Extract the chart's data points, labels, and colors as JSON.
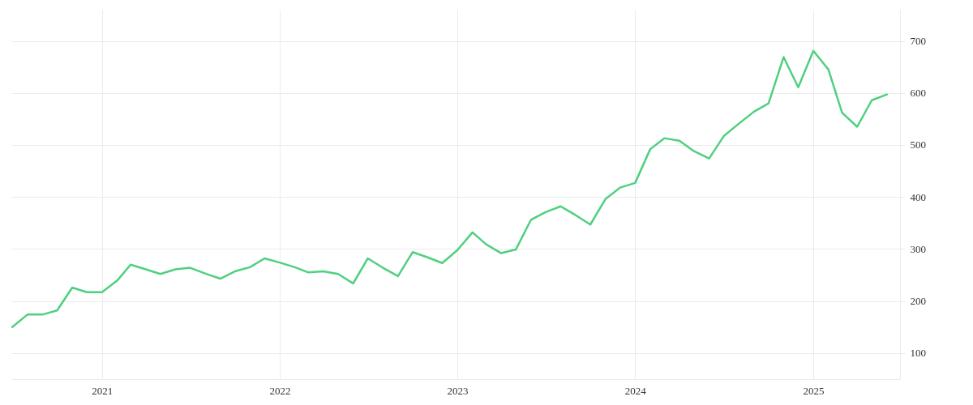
{
  "chart_data": {
    "type": "line",
    "x": [
      "2020-07",
      "2020-08",
      "2020-09",
      "2020-10",
      "2020-11",
      "2020-12",
      "2021-01",
      "2021-02",
      "2021-03",
      "2021-04",
      "2021-05",
      "2021-06",
      "2021-07",
      "2021-08",
      "2021-09",
      "2021-10",
      "2021-11",
      "2021-12",
      "2022-01",
      "2022-02",
      "2022-03",
      "2022-04",
      "2022-05",
      "2022-06",
      "2022-07",
      "2022-08",
      "2022-09",
      "2022-10",
      "2022-11",
      "2022-12",
      "2023-01",
      "2023-02",
      "2023-03",
      "2023-04",
      "2023-05",
      "2023-06",
      "2023-07",
      "2023-08",
      "2023-09",
      "2023-10",
      "2023-11",
      "2023-12",
      "2024-01",
      "2024-02",
      "2024-03",
      "2024-04",
      "2024-05",
      "2024-06",
      "2024-07",
      "2024-08",
      "2024-09",
      "2024-10",
      "2024-11",
      "2024-12",
      "2025-01",
      "2025-02",
      "2025-03",
      "2025-04",
      "2025-05",
      "2025-06"
    ],
    "series": [
      {
        "color": "#4fd07f",
        "values": [
          150,
          174,
          174,
          182,
          226,
          217,
          217,
          239,
          270,
          261,
          252,
          261,
          264,
          253,
          243,
          257,
          265,
          282,
          274,
          265,
          255,
          257,
          252,
          234,
          282,
          264,
          248,
          294,
          284,
          273,
          298,
          332,
          309,
          292,
          299,
          356,
          371,
          382,
          365,
          347,
          396,
          418,
          427,
          492,
          513,
          508,
          488,
          474,
          517,
          541,
          564,
          580,
          669,
          611,
          681,
          645,
          562,
          535,
          586,
          597
        ]
      }
    ],
    "xlim": [
      "2020-06-29",
      "2025-06-28"
    ],
    "xticks": [
      {
        "value": "2021-01-01",
        "label": "2021"
      },
      {
        "value": "2022-01-01",
        "label": "2022"
      },
      {
        "value": "2023-01-01",
        "label": "2023"
      },
      {
        "value": "2024-01-01",
        "label": "2024"
      },
      {
        "value": "2025-01-01",
        "label": "2025"
      }
    ],
    "ylim": [
      50,
      760
    ],
    "yticks": [
      100,
      200,
      300,
      400,
      500,
      600,
      700
    ],
    "grid": true,
    "line_style": "solid"
  }
}
